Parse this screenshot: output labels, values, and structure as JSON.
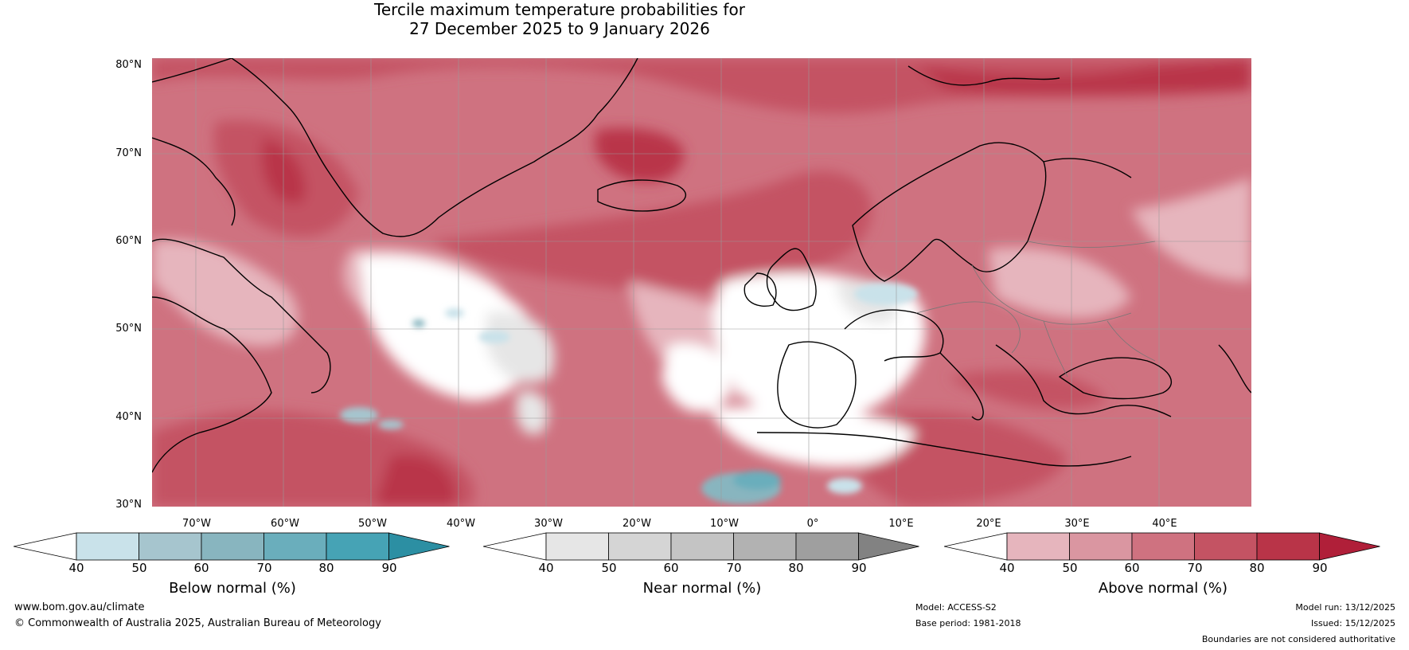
{
  "title": {
    "line1": "Tercile maximum temperature probabilities for",
    "line2": "27 December 2025 to 9 January 2026"
  },
  "map": {
    "lat_labels": [
      "80°N",
      "70°N",
      "60°N",
      "50°N",
      "40°N",
      "30°N"
    ],
    "lon_labels": [
      "70°W",
      "60°W",
      "50°W",
      "40°W",
      "30°W",
      "20°W",
      "10°W",
      "0°",
      "10°E",
      "20°E",
      "30°E",
      "40°E"
    ]
  },
  "colorbars": {
    "below": {
      "label": "Below normal (%)",
      "ticks": [
        "40",
        "50",
        "60",
        "70",
        "80",
        "90"
      ],
      "colors": [
        "#ffffff",
        "#c9e2ea",
        "#a6c5ce",
        "#88b5bf",
        "#6aaebc",
        "#46a3b5",
        "#2c8fa3"
      ]
    },
    "near": {
      "label": "Near normal (%)",
      "ticks": [
        "40",
        "50",
        "60",
        "70",
        "80",
        "90"
      ],
      "colors": [
        "#ffffff",
        "#e6e6e6",
        "#d5d5d5",
        "#c4c4c4",
        "#b2b2b2",
        "#9f9f9f",
        "#828282"
      ]
    },
    "above": {
      "label": "Above normal (%)",
      "ticks": [
        "40",
        "50",
        "60",
        "70",
        "80",
        "90"
      ],
      "colors": [
        "#ffffff",
        "#e6b5bd",
        "#da96a1",
        "#cf7280",
        "#c45363",
        "#b93448",
        "#b01f39"
      ]
    }
  },
  "footer": {
    "website": "www.bom.gov.au/climate",
    "copyright": "© Commonwealth of Australia 2025, Australian Bureau of Meteorology",
    "model": "Model: ACCESS-S2",
    "base_period": "Base period: 1981-2018",
    "model_run": "Model run: 13/12/2025",
    "issued": "Issued: 15/12/2025",
    "disclaimer": "Boundaries are not considered authoritative"
  }
}
